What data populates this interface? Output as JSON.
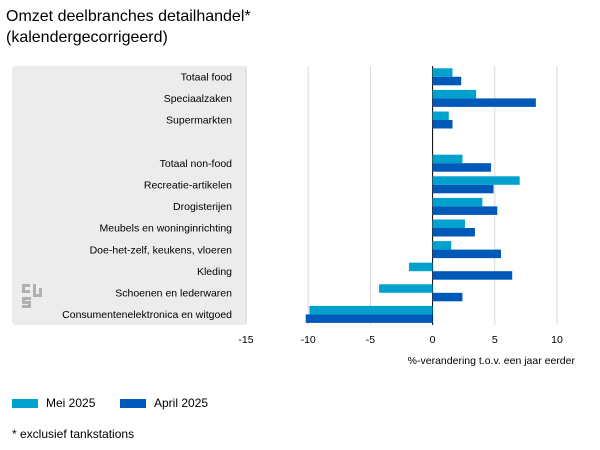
{
  "chart_data": {
    "type": "bar",
    "orientation": "horizontal",
    "title": "Omzet deelbranches detailhandel*\n(kalendergecorrigeerd)",
    "xlabel": "%-verandering t.o.v. een jaar eerder",
    "xlim": [
      -15,
      10
    ],
    "xticks": [
      -15,
      -10,
      -5,
      0,
      5,
      10
    ],
    "grid": true,
    "legend_position": "bottom-left",
    "categories": [
      "Totaal food",
      "Speciaalzaken",
      "Supermarkten",
      "",
      "Totaal non-food",
      "Recreatie-artikelen",
      "Drogisterijen",
      "Meubels en woninginrichting",
      "Doe-het-zelf, keukens, vloeren",
      "Kleding",
      "Schoenen en lederwaren",
      "Consumentenelektronica en witgoed"
    ],
    "series": [
      {
        "name": "Mei 2025",
        "color": "#00a1cd",
        "values": [
          1.6,
          3.5,
          1.3,
          null,
          2.4,
          7.0,
          4.0,
          2.6,
          1.5,
          -1.9,
          -4.3,
          -9.9
        ]
      },
      {
        "name": "April 2025",
        "color": "#0058b8",
        "values": [
          2.3,
          8.3,
          1.6,
          null,
          4.7,
          4.9,
          5.2,
          3.4,
          5.5,
          6.4,
          2.4,
          -10.2
        ]
      }
    ],
    "footnote": "* exclusief tankstations"
  },
  "icons": {
    "logo": "cbs-logo-icon"
  }
}
